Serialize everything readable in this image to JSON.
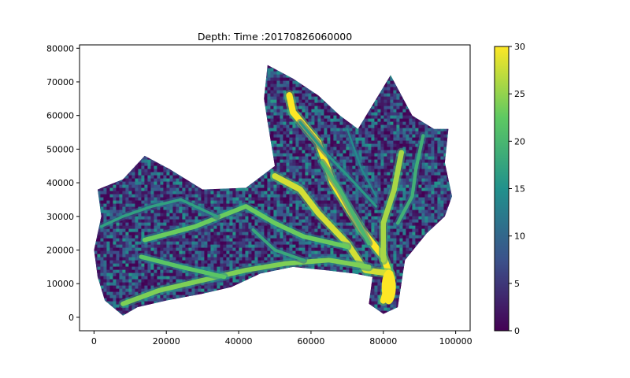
{
  "chart_data": {
    "type": "heatmap",
    "title": "Depth: Time :20170826060000",
    "xlabel": "",
    "ylabel": "",
    "xlim": [
      -4000,
      104000
    ],
    "ylim": [
      -4000,
      81000
    ],
    "x_ticks": [
      0,
      20000,
      40000,
      60000,
      80000,
      100000
    ],
    "y_ticks": [
      0,
      10000,
      20000,
      30000,
      40000,
      50000,
      60000,
      70000,
      80000
    ],
    "colorbar": {
      "min": 0,
      "max": 30,
      "ticks": [
        0,
        5,
        10,
        15,
        20,
        25,
        30
      ],
      "colormap": [
        "#440154",
        "#3b528b",
        "#21918c",
        "#5ec962",
        "#fde725"
      ]
    },
    "grid": false,
    "domain_outline": [
      [
        1000,
        38000
      ],
      [
        8000,
        41000
      ],
      [
        14000,
        48000
      ],
      [
        21000,
        44000
      ],
      [
        30000,
        38000
      ],
      [
        42000,
        38500
      ],
      [
        50000,
        45000
      ],
      [
        48000,
        58000
      ],
      [
        47000,
        65000
      ],
      [
        48000,
        75000
      ],
      [
        55000,
        71000
      ],
      [
        62000,
        66000
      ],
      [
        68000,
        60000
      ],
      [
        73000,
        56000
      ],
      [
        82000,
        72000
      ],
      [
        88000,
        60000
      ],
      [
        94000,
        56000
      ],
      [
        98000,
        56000
      ],
      [
        97000,
        46000
      ],
      [
        99000,
        36000
      ],
      [
        97000,
        30000
      ],
      [
        92000,
        25000
      ],
      [
        86000,
        17000
      ],
      [
        85000,
        10000
      ],
      [
        84000,
        3000
      ],
      [
        80000,
        1000
      ],
      [
        76000,
        4000
      ],
      [
        77000,
        12000
      ],
      [
        72000,
        13000
      ],
      [
        64000,
        14000
      ],
      [
        55000,
        15000
      ],
      [
        46000,
        13000
      ],
      [
        38000,
        9000
      ],
      [
        30000,
        7000
      ],
      [
        20000,
        5000
      ],
      [
        12000,
        3000
      ],
      [
        8000,
        500
      ],
      [
        3000,
        5000
      ],
      [
        1000,
        12000
      ],
      [
        0,
        20000
      ],
      [
        2000,
        30000
      ],
      [
        1000,
        38000
      ]
    ],
    "high_depth_channels": [
      {
        "points": [
          [
            54000,
            66000
          ],
          [
            55000,
            61000
          ],
          [
            62000,
            52000
          ],
          [
            66000,
            40000
          ],
          [
            74000,
            26000
          ],
          [
            80000,
            18000
          ],
          [
            82000,
            12000
          ],
          [
            80000,
            5000
          ]
        ],
        "depth": 30
      },
      {
        "points": [
          [
            50000,
            42000
          ],
          [
            57000,
            38000
          ],
          [
            62000,
            31000
          ],
          [
            70000,
            22000
          ],
          [
            75000,
            14000
          ],
          [
            82000,
            13000
          ]
        ],
        "depth": 28
      },
      {
        "points": [
          [
            85000,
            49000
          ],
          [
            83000,
            38000
          ],
          [
            80000,
            28000
          ],
          [
            80000,
            17000
          ]
        ],
        "depth": 26
      },
      {
        "points": [
          [
            8000,
            4000
          ],
          [
            18000,
            8000
          ],
          [
            30000,
            11000
          ],
          [
            42000,
            14000
          ],
          [
            53000,
            16000
          ],
          [
            65000,
            17000
          ],
          [
            76000,
            15000
          ]
        ],
        "depth": 24
      },
      {
        "points": [
          [
            14000,
            23000
          ],
          [
            28000,
            27000
          ],
          [
            42000,
            33000
          ],
          [
            50000,
            28000
          ],
          [
            58000,
            24000
          ],
          [
            70000,
            21000
          ]
        ],
        "depth": 23
      },
      {
        "points": [
          [
            13000,
            18000
          ],
          [
            24000,
            15000
          ],
          [
            36000,
            12000
          ]
        ],
        "depth": 22
      },
      {
        "points": [
          [
            63000,
            46000
          ],
          [
            68000,
            38000
          ],
          [
            72000,
            30000
          ],
          [
            76000,
            22000
          ]
        ],
        "depth": 20
      },
      {
        "points": [
          [
            2000,
            27000
          ],
          [
            8000,
            30000
          ],
          [
            16000,
            33000
          ],
          [
            24000,
            35000
          ],
          [
            34000,
            30000
          ]
        ],
        "depth": 17
      },
      {
        "points": [
          [
            91000,
            54000
          ],
          [
            89000,
            44000
          ],
          [
            88000,
            36000
          ],
          [
            84000,
            28000
          ]
        ],
        "depth": 19
      },
      {
        "points": [
          [
            57000,
            58000
          ],
          [
            64000,
            49000
          ],
          [
            72000,
            40000
          ],
          [
            78000,
            33000
          ]
        ],
        "depth": 16
      },
      {
        "points": [
          [
            44000,
            26000
          ],
          [
            50000,
            20000
          ],
          [
            58000,
            17000
          ]
        ],
        "depth": 18
      },
      {
        "points": [
          [
            70000,
            56000
          ],
          [
            74000,
            44000
          ],
          [
            78000,
            36000
          ]
        ],
        "depth": 14
      }
    ]
  }
}
